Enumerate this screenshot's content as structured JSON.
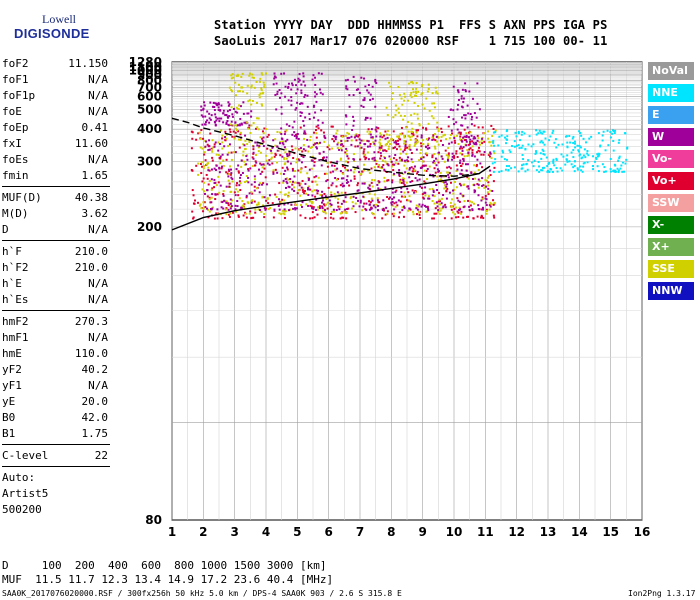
{
  "logo": {
    "line1": "Lowell",
    "line2": "DIGISONDE"
  },
  "header": {
    "line1": "Station YYYY DAY  DDD HHMMSS P1  FFS S AXN PPS IGA PS",
    "line2": "SaoLuis 2017 Mar17 076 020000 RSF    1 715 100 00- 11"
  },
  "params_group1": [
    {
      "k": "foF2",
      "v": "11.150"
    },
    {
      "k": "foF1",
      "v": "N/A"
    },
    {
      "k": "foF1p",
      "v": "N/A"
    },
    {
      "k": "foE",
      "v": "N/A"
    },
    {
      "k": "foEp",
      "v": "0.41"
    },
    {
      "k": "fxI",
      "v": "11.60"
    },
    {
      "k": "foEs",
      "v": "N/A"
    },
    {
      "k": "fmin",
      "v": "1.65"
    }
  ],
  "params_group2": [
    {
      "k": "MUF(D)",
      "v": "40.38"
    },
    {
      "k": "M(D)",
      "v": "3.62"
    },
    {
      "k": "D",
      "v": "N/A"
    }
  ],
  "params_group3": [
    {
      "k": "h`F",
      "v": "210.0"
    },
    {
      "k": "h`F2",
      "v": "210.0"
    },
    {
      "k": "h`E",
      "v": "N/A"
    },
    {
      "k": "h`Es",
      "v": "N/A"
    }
  ],
  "params_group4": [
    {
      "k": "hmF2",
      "v": "270.3"
    },
    {
      "k": "hmF1",
      "v": "N/A"
    },
    {
      "k": "hmE",
      "v": "110.0"
    },
    {
      "k": "yF2",
      "v": "40.2"
    },
    {
      "k": "yF1",
      "v": "N/A"
    },
    {
      "k": "yE",
      "v": "20.0"
    },
    {
      "k": "B0",
      "v": "42.0"
    },
    {
      "k": "B1",
      "v": "1.75"
    }
  ],
  "clevel": {
    "k": "C-level",
    "v": "22"
  },
  "autoscaling": {
    "line1": "Auto:",
    "line2": "Artist5",
    "line3": "500200"
  },
  "legend": [
    {
      "label": "NoVal",
      "color": "#9a9a9a",
      "text": "#ffffff"
    },
    {
      "label": "NNE",
      "color": "#00e5ff",
      "text": "#ffffff"
    },
    {
      "label": "E",
      "color": "#3aa0f0",
      "text": "#ffffff"
    },
    {
      "label": "W",
      "color": "#a0009a",
      "text": "#ffffff"
    },
    {
      "label": "Vo-",
      "color": "#f03c9a",
      "text": "#ffffff"
    },
    {
      "label": "Vo+",
      "color": "#e00030",
      "text": "#ffffff"
    },
    {
      "label": "SSW",
      "color": "#f4a0a0",
      "text": "#ffffff"
    },
    {
      "label": "X-",
      "color": "#008000",
      "text": "#ffffff"
    },
    {
      "label": "X+",
      "color": "#70b050",
      "text": "#ffffff"
    },
    {
      "label": "SSE",
      "color": "#d0d000",
      "text": "#ffffff"
    },
    {
      "label": "NNW",
      "color": "#1010c0",
      "text": "#ffffff"
    }
  ],
  "muf_table": {
    "line1": "D     100  200  400  600  800 1000 1500 3000 [km]",
    "line2": "MUF  11.5 11.7 12.3 13.4 14.9 17.2 23.6 40.4 [MHz]"
  },
  "footer": {
    "left": "SAA0K_2017076020000.RSF / 300fx256h 50 kHz 5.0 km / DPS-4 SAA0K 903 / 2.6 S 315.8 E",
    "right": "Ion2Png 1.3.17"
  },
  "chart_data": {
    "type": "scatter",
    "title": "",
    "xlabel": "",
    "ylabel": "",
    "xlim": [
      1,
      16
    ],
    "ylim": [
      80,
      1280
    ],
    "x_ticks": [
      1,
      2,
      3,
      4,
      5,
      6,
      7,
      8,
      9,
      10,
      11,
      12,
      13,
      14,
      15,
      16
    ],
    "y_ticks": [
      80,
      200,
      300,
      400,
      500,
      600,
      700,
      800,
      900,
      1000,
      1100,
      1280
    ],
    "y_scale": "reciprocal-height",
    "grid": true,
    "legend_position": "right",
    "traces": [
      {
        "name": "O-trace lower edge",
        "x": [
          1.0,
          2.0,
          3.0,
          4.0,
          5.0,
          6.0,
          7.0,
          8.0,
          9.0,
          10.0,
          10.8,
          11.15
        ],
        "y": [
          197,
          210,
          218,
          224,
          230,
          236,
          242,
          249,
          256,
          265,
          275,
          290
        ],
        "color": "#000000"
      },
      {
        "name": "profile",
        "x": [
          1.0,
          1.5,
          2.0,
          3.0,
          4.0,
          5.0,
          6.0,
          7.0,
          8.0,
          9.0,
          10.0,
          10.8,
          11.15
        ],
        "y": [
          450,
          430,
          405,
          375,
          345,
          320,
          300,
          285,
          278,
          272,
          270,
          275,
          290
        ],
        "color": "#000000",
        "dashed": true
      }
    ],
    "echo_clusters": [
      {
        "x": [
          1.6,
          11.3
        ],
        "y": [
          210,
          420
        ],
        "color": "#e00030"
      },
      {
        "x": [
          1.8,
          11.3
        ],
        "y": [
          215,
          400
        ],
        "color": "#d0d000"
      },
      {
        "x": [
          2.0,
          11.2
        ],
        "y": [
          220,
          380
        ],
        "color": "#a0009a"
      },
      {
        "x": [
          11.2,
          15.5
        ],
        "y": [
          280,
          400
        ],
        "color": "#00e5ff"
      },
      {
        "x": [
          1.9,
          3.5
        ],
        "y": [
          420,
          560
        ],
        "color": "#a0009a"
      },
      {
        "x": [
          2.8,
          4.0
        ],
        "y": [
          400,
          980
        ],
        "color": "#d0d000"
      },
      {
        "x": [
          4.2,
          5.8
        ],
        "y": [
          380,
          960
        ],
        "color": "#a0009a"
      },
      {
        "x": [
          6.5,
          7.5
        ],
        "y": [
          350,
          880
        ],
        "color": "#a0009a"
      },
      {
        "x": [
          7.8,
          9.5
        ],
        "y": [
          350,
          800
        ],
        "color": "#d0d000"
      },
      {
        "x": [
          9.8,
          10.8
        ],
        "y": [
          350,
          780
        ],
        "color": "#a0009a"
      }
    ]
  }
}
